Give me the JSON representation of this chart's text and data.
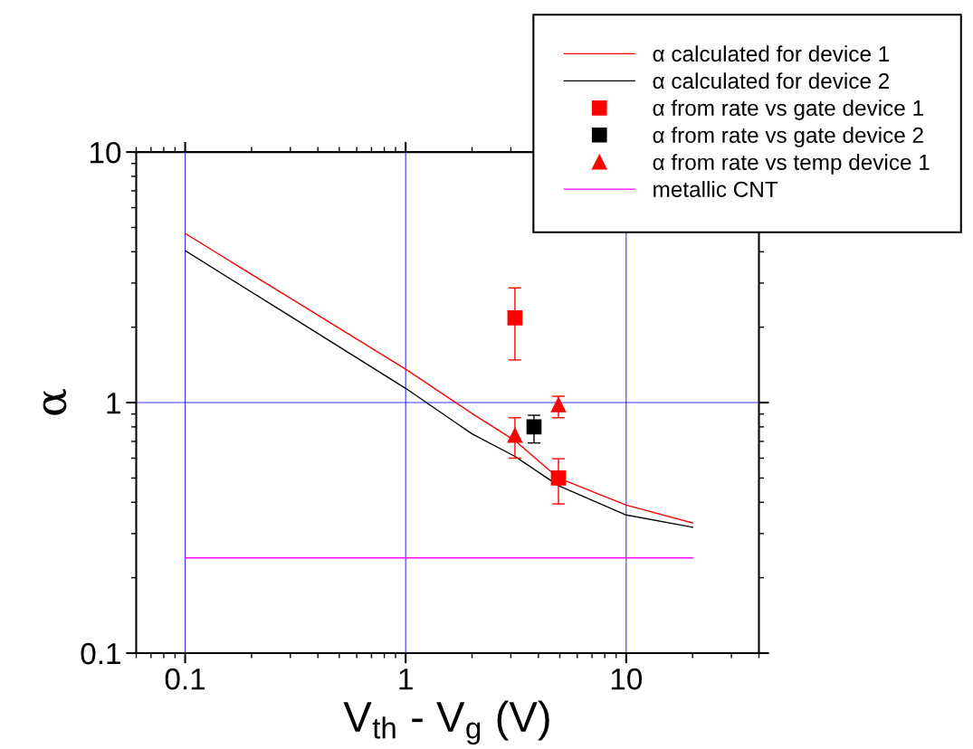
{
  "chart_data": {
    "type": "line",
    "xlabel": "V$_{th}$ - V$_{g}$ (V)",
    "ylabel": "α",
    "log": "xy",
    "xlim": [
      0.06,
      40
    ],
    "ylim": [
      0.1,
      10
    ],
    "xticks": [
      0.1,
      1,
      10
    ],
    "yticks": [
      0.1,
      1,
      10
    ],
    "grid": true,
    "legend": "top right",
    "series": [
      {
        "name": "α calculated for device 1",
        "color": "#ff0000",
        "marker": "none",
        "x": [
          0.1,
          0.3,
          1,
          2,
          3.13,
          4.93,
          10,
          20
        ],
        "values": [
          4.73,
          2.61,
          1.36,
          0.905,
          0.705,
          0.5,
          0.39,
          0.331
        ]
      },
      {
        "name": "α calculated for device 2",
        "color": "#000000",
        "marker": "none",
        "x": [
          0.1,
          0.3,
          1,
          2,
          3.13,
          4.93,
          10,
          20
        ],
        "values": [
          4.04,
          2.21,
          1.14,
          0.75,
          0.61,
          0.466,
          0.356,
          0.318
        ]
      },
      {
        "name": "α from rate vs gate device 1",
        "type": "scatter",
        "color": "#ff0000",
        "marker": "square",
        "x": [
          3.13,
          4.93
        ],
        "values": [
          2.18,
          0.5
        ],
        "errors": [
          [
            1.48,
            2.87
          ],
          [
            0.394,
            0.597
          ]
        ]
      },
      {
        "name": "α from rate vs gate device 2",
        "type": "scatter",
        "color": "#000000",
        "marker": "square",
        "x": [
          3.82
        ],
        "values": [
          0.8
        ],
        "errors": [
          [
            0.69,
            0.89
          ]
        ]
      },
      {
        "name": "α from rate vs temp device 1",
        "type": "scatter",
        "color": "#ff0000",
        "marker": "triangle",
        "x": [
          3.13,
          4.93
        ],
        "values": [
          0.74,
          0.98
        ],
        "errors": [
          [
            0.6,
            0.87
          ],
          [
            0.87,
            1.06
          ]
        ]
      },
      {
        "name": "metallic CNT",
        "color": "#ff00ff",
        "marker": "none",
        "x": [
          0.1,
          20
        ],
        "values": [
          0.24,
          0.24
        ]
      }
    ]
  }
}
